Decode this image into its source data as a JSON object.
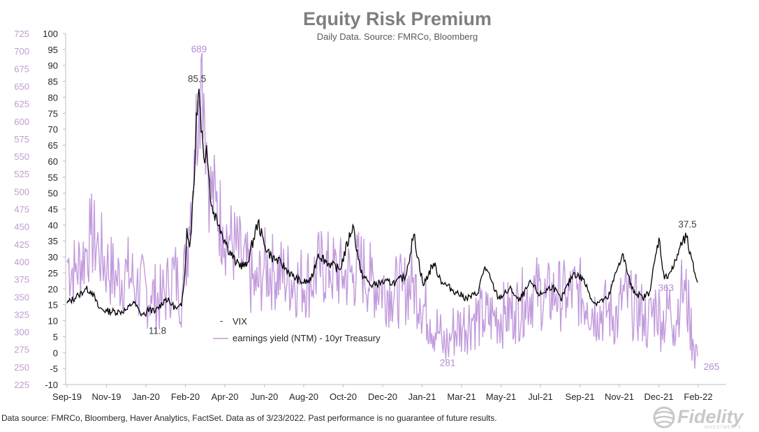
{
  "chart_data": {
    "type": "line",
    "title": "Equity Risk Premium",
    "subtitle": "Daily Data.  Source: FMRCo, Bloomberg",
    "x_ticks": [
      "Sep-19",
      "Nov-19",
      "Jan-20",
      "Feb-20",
      "Apr-20",
      "Jun-20",
      "Aug-20",
      "Oct-20",
      "Dec-20",
      "Jan-21",
      "Mar-21",
      "May-21",
      "Jul-21",
      "Sep-21",
      "Nov-21",
      "Dec-21",
      "Feb-22"
    ],
    "y_left": {
      "min": 225,
      "max": 725,
      "step": 25,
      "ticks": [
        "725",
        "700",
        "675",
        "650",
        "625",
        "600",
        "575",
        "550",
        "525",
        "500",
        "475",
        "450",
        "425",
        "400",
        "375",
        "350",
        "325",
        "300",
        "275",
        "250",
        "225"
      ]
    },
    "y_right": {
      "min": -10,
      "max": 100,
      "step": 5,
      "ticks": [
        "100",
        "95",
        "90",
        "85",
        "80",
        "75",
        "70",
        "65",
        "60",
        "55",
        "50",
        "45",
        "40",
        "35",
        "30",
        "25",
        "20",
        "15",
        "10",
        "5",
        "0",
        "-5",
        "-10"
      ]
    },
    "x_range": [
      "2019-09-01",
      "2022-03-23"
    ],
    "series": [
      {
        "name": "VIX",
        "axis": "right",
        "color": "#000000",
        "points": [
          [
            "2019-09-03",
            15.5
          ],
          [
            "2019-09-20",
            18
          ],
          [
            "2019-10-01",
            20
          ],
          [
            "2019-10-10",
            19
          ],
          [
            "2019-10-20",
            14
          ],
          [
            "2019-11-01",
            13
          ],
          [
            "2019-11-20",
            12.8
          ],
          [
            "2019-12-01",
            13.5
          ],
          [
            "2019-12-10",
            16
          ],
          [
            "2019-12-20",
            12.4
          ],
          [
            "2019-12-27",
            11.8
          ],
          [
            "2020-01-03",
            14
          ],
          [
            "2020-01-10",
            12.5
          ],
          [
            "2020-01-27",
            17
          ],
          [
            "2020-02-05",
            15
          ],
          [
            "2020-02-12",
            13.7
          ],
          [
            "2020-02-19",
            14.5
          ],
          [
            "2020-02-24",
            25
          ],
          [
            "2020-02-27",
            39
          ],
          [
            "2020-03-02",
            33
          ],
          [
            "2020-03-09",
            54
          ],
          [
            "2020-03-12",
            75
          ],
          [
            "2020-03-16",
            82.7
          ],
          [
            "2020-03-18",
            76
          ],
          [
            "2020-03-23",
            61
          ],
          [
            "2020-03-27",
            65
          ],
          [
            "2020-04-03",
            46
          ],
          [
            "2020-04-15",
            40
          ],
          [
            "2020-04-27",
            33
          ],
          [
            "2020-05-10",
            28
          ],
          [
            "2020-05-25",
            27
          ],
          [
            "2020-06-11",
            41
          ],
          [
            "2020-06-20",
            34
          ],
          [
            "2020-07-01",
            30
          ],
          [
            "2020-07-15",
            28
          ],
          [
            "2020-08-01",
            24
          ],
          [
            "2020-08-15",
            22
          ],
          [
            "2020-08-28",
            22.5
          ],
          [
            "2020-09-08",
            31
          ],
          [
            "2020-09-23",
            28
          ],
          [
            "2020-10-10",
            26
          ],
          [
            "2020-10-29",
            40
          ],
          [
            "2020-11-10",
            25
          ],
          [
            "2020-11-25",
            21
          ],
          [
            "2020-12-10",
            22
          ],
          [
            "2020-12-31",
            22
          ],
          [
            "2021-01-15",
            24
          ],
          [
            "2021-01-27",
            37
          ],
          [
            "2021-02-10",
            21
          ],
          [
            "2021-02-25",
            28
          ],
          [
            "2021-03-10",
            22
          ],
          [
            "2021-03-30",
            19
          ],
          [
            "2021-04-15",
            17
          ],
          [
            "2021-05-01",
            18.5
          ],
          [
            "2021-05-12",
            27
          ],
          [
            "2021-06-01",
            17
          ],
          [
            "2021-06-20",
            20
          ],
          [
            "2021-07-01",
            16
          ],
          [
            "2021-07-19",
            22
          ],
          [
            "2021-08-01",
            18
          ],
          [
            "2021-08-20",
            21
          ],
          [
            "2021-09-01",
            16.5
          ],
          [
            "2021-09-20",
            25
          ],
          [
            "2021-10-04",
            23
          ],
          [
            "2021-10-20",
            15.5
          ],
          [
            "2021-11-10",
            17
          ],
          [
            "2021-11-26",
            28
          ],
          [
            "2021-12-01",
            31
          ],
          [
            "2021-12-15",
            20
          ],
          [
            "2021-12-31",
            17
          ],
          [
            "2022-01-10",
            19
          ],
          [
            "2022-01-24",
            36
          ],
          [
            "2022-02-01",
            23
          ],
          [
            "2022-02-15",
            27
          ],
          [
            "2022-02-24",
            33
          ],
          [
            "2022-03-07",
            36.5
          ],
          [
            "2022-03-10",
            31
          ],
          [
            "2022-03-18",
            25
          ],
          [
            "2022-03-22",
            22
          ]
        ]
      },
      {
        "name": "earnings yield (NTM) - 10yr Treasury",
        "axis": "left",
        "color": "#c29bdc",
        "points": [
          [
            "2019-09-03",
            402
          ],
          [
            "2019-09-15",
            385
          ],
          [
            "2019-10-01",
            415
          ],
          [
            "2019-10-08",
            438
          ],
          [
            "2019-10-20",
            418
          ],
          [
            "2019-11-01",
            395
          ],
          [
            "2019-11-15",
            375
          ],
          [
            "2019-12-01",
            385
          ],
          [
            "2019-12-15",
            365
          ],
          [
            "2020-01-05",
            352
          ],
          [
            "2020-01-20",
            345
          ],
          [
            "2020-01-31",
            365
          ],
          [
            "2020-02-08",
            388
          ],
          [
            "2020-02-14",
            365
          ],
          [
            "2020-02-20",
            356
          ],
          [
            "2020-02-25",
            395
          ],
          [
            "2020-03-01",
            450
          ],
          [
            "2020-03-09",
            560
          ],
          [
            "2020-03-16",
            630
          ],
          [
            "2020-03-19",
            689
          ],
          [
            "2020-03-23",
            640
          ],
          [
            "2020-03-27",
            570
          ],
          [
            "2020-04-01",
            500
          ],
          [
            "2020-04-10",
            485
          ],
          [
            "2020-04-20",
            450
          ],
          [
            "2020-05-01",
            430
          ],
          [
            "2020-05-20",
            400
          ],
          [
            "2020-06-08",
            358
          ],
          [
            "2020-06-20",
            392
          ],
          [
            "2020-07-05",
            385
          ],
          [
            "2020-07-20",
            380
          ],
          [
            "2020-08-10",
            372
          ],
          [
            "2020-08-28",
            373
          ],
          [
            "2020-09-10",
            392
          ],
          [
            "2020-09-25",
            388
          ],
          [
            "2020-10-15",
            380
          ],
          [
            "2020-10-30",
            383
          ],
          [
            "2020-11-09",
            395
          ],
          [
            "2020-11-25",
            372
          ],
          [
            "2020-12-10",
            365
          ],
          [
            "2020-12-25",
            358
          ],
          [
            "2021-01-10",
            358
          ],
          [
            "2021-01-25",
            370
          ],
          [
            "2021-02-05",
            348
          ],
          [
            "2021-02-20",
            318
          ],
          [
            "2021-03-05",
            300
          ],
          [
            "2021-03-10",
            282
          ],
          [
            "2021-03-18",
            281
          ],
          [
            "2021-03-25",
            300
          ],
          [
            "2021-04-10",
            310
          ],
          [
            "2021-04-25",
            322
          ],
          [
            "2021-05-10",
            318
          ],
          [
            "2021-05-25",
            322
          ],
          [
            "2021-06-10",
            325
          ],
          [
            "2021-06-25",
            330
          ],
          [
            "2021-07-10",
            345
          ],
          [
            "2021-07-25",
            360
          ],
          [
            "2021-08-10",
            348
          ],
          [
            "2021-08-25",
            355
          ],
          [
            "2021-09-10",
            350
          ],
          [
            "2021-09-25",
            360
          ],
          [
            "2021-10-10",
            342
          ],
          [
            "2021-10-25",
            328
          ],
          [
            "2021-11-10",
            330
          ],
          [
            "2021-11-25",
            320
          ],
          [
            "2021-12-01",
            352
          ],
          [
            "2021-12-15",
            338
          ],
          [
            "2022-01-01",
            325
          ],
          [
            "2022-01-08",
            310
          ],
          [
            "2022-01-20",
            340
          ],
          [
            "2022-01-28",
            315
          ],
          [
            "2022-02-10",
            335
          ],
          [
            "2022-02-15",
            310
          ],
          [
            "2022-02-25",
            355
          ],
          [
            "2022-03-04",
            358
          ],
          [
            "2022-03-10",
            320
          ],
          [
            "2022-03-15",
            290
          ],
          [
            "2022-03-22",
            265
          ]
        ]
      }
    ],
    "annotations": [
      {
        "text": "689",
        "series": "earnings yield (NTM) - 10yr Treasury"
      },
      {
        "text": "85.5",
        "series": "VIX"
      },
      {
        "text": "11.8",
        "series": "VIX"
      },
      {
        "text": "281",
        "series": "earnings yield (NTM) - 10yr Treasury"
      },
      {
        "text": "37.5",
        "series": "VIX"
      },
      {
        "text": "363",
        "series": "earnings yield (NTM) - 10yr Treasury"
      },
      {
        "text": "265",
        "series": "earnings yield (NTM) - 10yr Treasury"
      }
    ],
    "legend": {
      "placement": "inside-lower-left",
      "entries": [
        {
          "label": "VIX",
          "marker": "-"
        },
        {
          "label": "earnings yield (NTM) - 10yr Treasury"
        }
      ]
    },
    "grid": false
  },
  "footer": "Data source: FMRCo, Bloomberg, Haver Analytics, FactSet. Data as of 3/23/2022. Past performance is no guarantee of future results.",
  "logo": {
    "text": "Fidelity",
    "subtext": "INVESTMENTS",
    "color": "#c8c8c8"
  }
}
